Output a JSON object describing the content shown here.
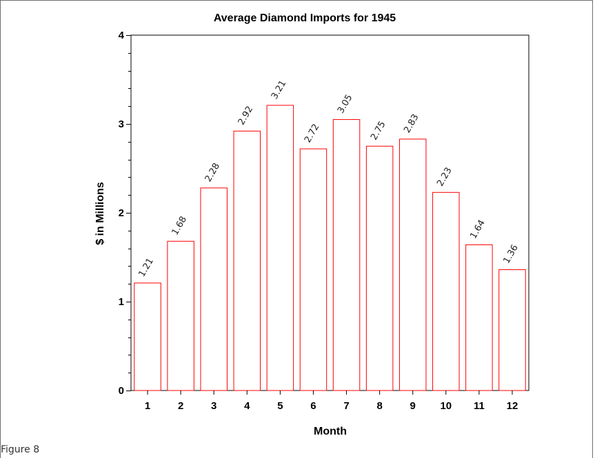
{
  "caption": "Figure 8",
  "chart_data": {
    "type": "bar",
    "title": "Average Diamond Imports for 1945",
    "xlabel": "Month",
    "ylabel": "$ in Millions",
    "categories": [
      "1",
      "2",
      "3",
      "4",
      "5",
      "6",
      "7",
      "8",
      "9",
      "10",
      "11",
      "12"
    ],
    "values": [
      1.21,
      1.68,
      2.28,
      2.92,
      3.21,
      2.72,
      3.05,
      2.75,
      2.83,
      2.23,
      1.64,
      1.36
    ],
    "data_labels": [
      "1.21",
      "1.68",
      "2.28",
      "2.92",
      "3.21",
      "2.72",
      "3.05",
      "2.75",
      "2.83",
      "2.23",
      "1.64",
      "1.36"
    ],
    "ylim": [
      0,
      4
    ],
    "yticks": [
      "0",
      "1",
      "2",
      "3",
      "4"
    ],
    "grid": false,
    "bar_color": "#ff0000",
    "bar_fill": "#ffffff"
  }
}
